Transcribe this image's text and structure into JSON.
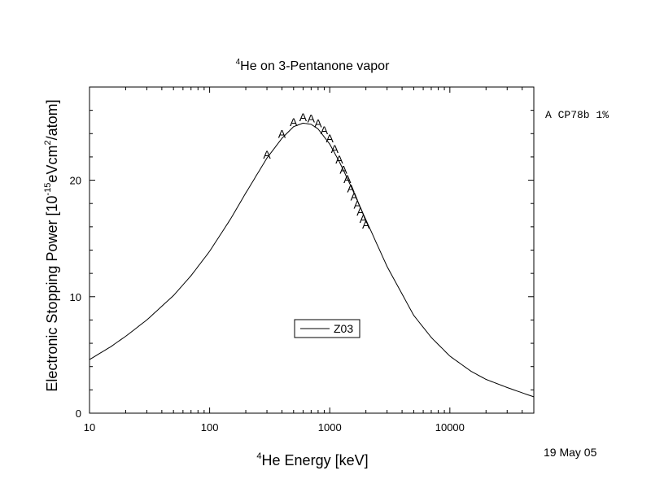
{
  "chart_data": {
    "type": "line",
    "title_sup": "4",
    "title": "He on 3-Pentanone vapor",
    "xlabel_sup": "4",
    "xlabel": "He Energy [keV]",
    "ylabel_pre": "Electronic Stopping Power [10",
    "ylabel_sup1": "-15",
    "ylabel_mid": "eVcm",
    "ylabel_sup2": "2",
    "ylabel_post": "/atom]",
    "x_scale": "log",
    "xlim": [
      10,
      50000
    ],
    "ylim": [
      0,
      28
    ],
    "x_ticks": [
      {
        "value": 10,
        "label": "10"
      },
      {
        "value": 100,
        "label": "100"
      },
      {
        "value": 1000,
        "label": "1000"
      },
      {
        "value": 10000,
        "label": "10000"
      }
    ],
    "y_ticks": [
      {
        "value": 0,
        "label": "0"
      },
      {
        "value": 10,
        "label": "10"
      },
      {
        "value": 20,
        "label": "20"
      }
    ],
    "series": [
      {
        "name": "Z03",
        "kind": "line",
        "x": [
          10,
          15,
          20,
          30,
          50,
          70,
          100,
          150,
          200,
          300,
          400,
          500,
          600,
          700,
          800,
          1000,
          1200,
          1500,
          2000,
          3000,
          5000,
          7000,
          10000,
          15000,
          20000,
          30000,
          50000
        ],
        "y": [
          4.6,
          5.7,
          6.6,
          8.0,
          10.1,
          11.8,
          13.9,
          16.7,
          18.9,
          21.9,
          23.6,
          24.6,
          24.9,
          24.8,
          24.4,
          23.1,
          21.6,
          19.5,
          16.6,
          12.6,
          8.4,
          6.5,
          4.9,
          3.6,
          2.9,
          2.2,
          1.4
        ]
      },
      {
        "name": "A CP78b 1%",
        "kind": "marker",
        "marker": "A",
        "x": [
          300,
          400,
          500,
          600,
          700,
          800,
          900,
          1000,
          1100,
          1200,
          1300,
          1400,
          1500,
          1600,
          1700,
          1800,
          1900,
          2000
        ],
        "y": [
          22.2,
          24.0,
          25.0,
          25.4,
          25.3,
          24.9,
          24.3,
          23.6,
          22.7,
          21.8,
          20.9,
          20.1,
          19.3,
          18.6,
          17.9,
          17.3,
          16.7,
          16.2
        ]
      }
    ],
    "legend": [
      {
        "label": "Z03",
        "placement": "center-lower"
      },
      {
        "label": "A CP78b 1%",
        "placement": "outside-right"
      }
    ],
    "grid": false,
    "annotation": "19 May 05"
  }
}
